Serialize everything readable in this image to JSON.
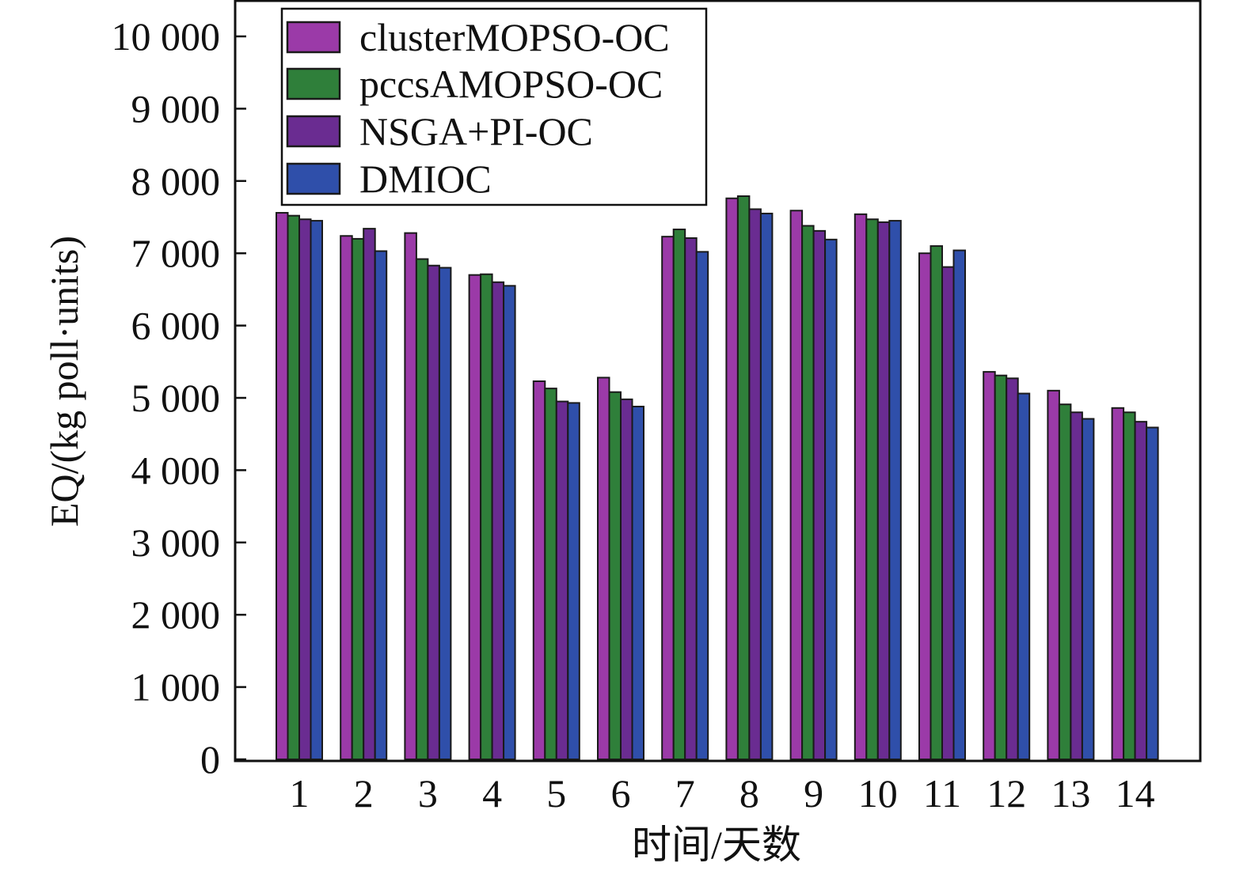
{
  "chart_data": {
    "type": "bar",
    "xlabel": "时间/天数",
    "ylabel": "EQ/(kg poll·units)",
    "ylim": [
      0,
      10500
    ],
    "yticks": [
      0,
      1000,
      2000,
      3000,
      4000,
      5000,
      6000,
      7000,
      8000,
      9000,
      10000
    ],
    "ytick_labels": [
      "0",
      "1 000",
      "2 000",
      "3 000",
      "4 000",
      "5 000",
      "6 000",
      "7 000",
      "8 000",
      "9 000",
      "10 000"
    ],
    "categories": [
      "1",
      "2",
      "3",
      "4",
      "5",
      "6",
      "7",
      "8",
      "9",
      "10",
      "11",
      "12",
      "13",
      "14"
    ],
    "grid": false,
    "legend_position": "top-left",
    "series": [
      {
        "name": "clusterMOPSO-OC",
        "color": "#9B3AA8",
        "values": [
          7560,
          7240,
          7280,
          6700,
          5230,
          5280,
          7230,
          7760,
          7590,
          7540,
          7000,
          5360,
          5100,
          4860
        ]
      },
      {
        "name": "pccsAMOPSO-OC",
        "color": "#2F7F3A",
        "values": [
          7520,
          7200,
          6920,
          6710,
          5130,
          5080,
          7330,
          7790,
          7380,
          7470,
          7100,
          5310,
          4910,
          4800
        ]
      },
      {
        "name": "NSGA+PI-OC",
        "color": "#6A2C91",
        "values": [
          7470,
          7340,
          6830,
          6600,
          4950,
          4980,
          7210,
          7610,
          7310,
          7430,
          6810,
          5270,
          4800,
          4670
        ]
      },
      {
        "name": "DMIOC",
        "color": "#2F4FAA",
        "values": [
          7450,
          7030,
          6800,
          6550,
          4930,
          4880,
          7020,
          7550,
          7190,
          7450,
          7040,
          5060,
          4710,
          4590
        ]
      }
    ]
  }
}
